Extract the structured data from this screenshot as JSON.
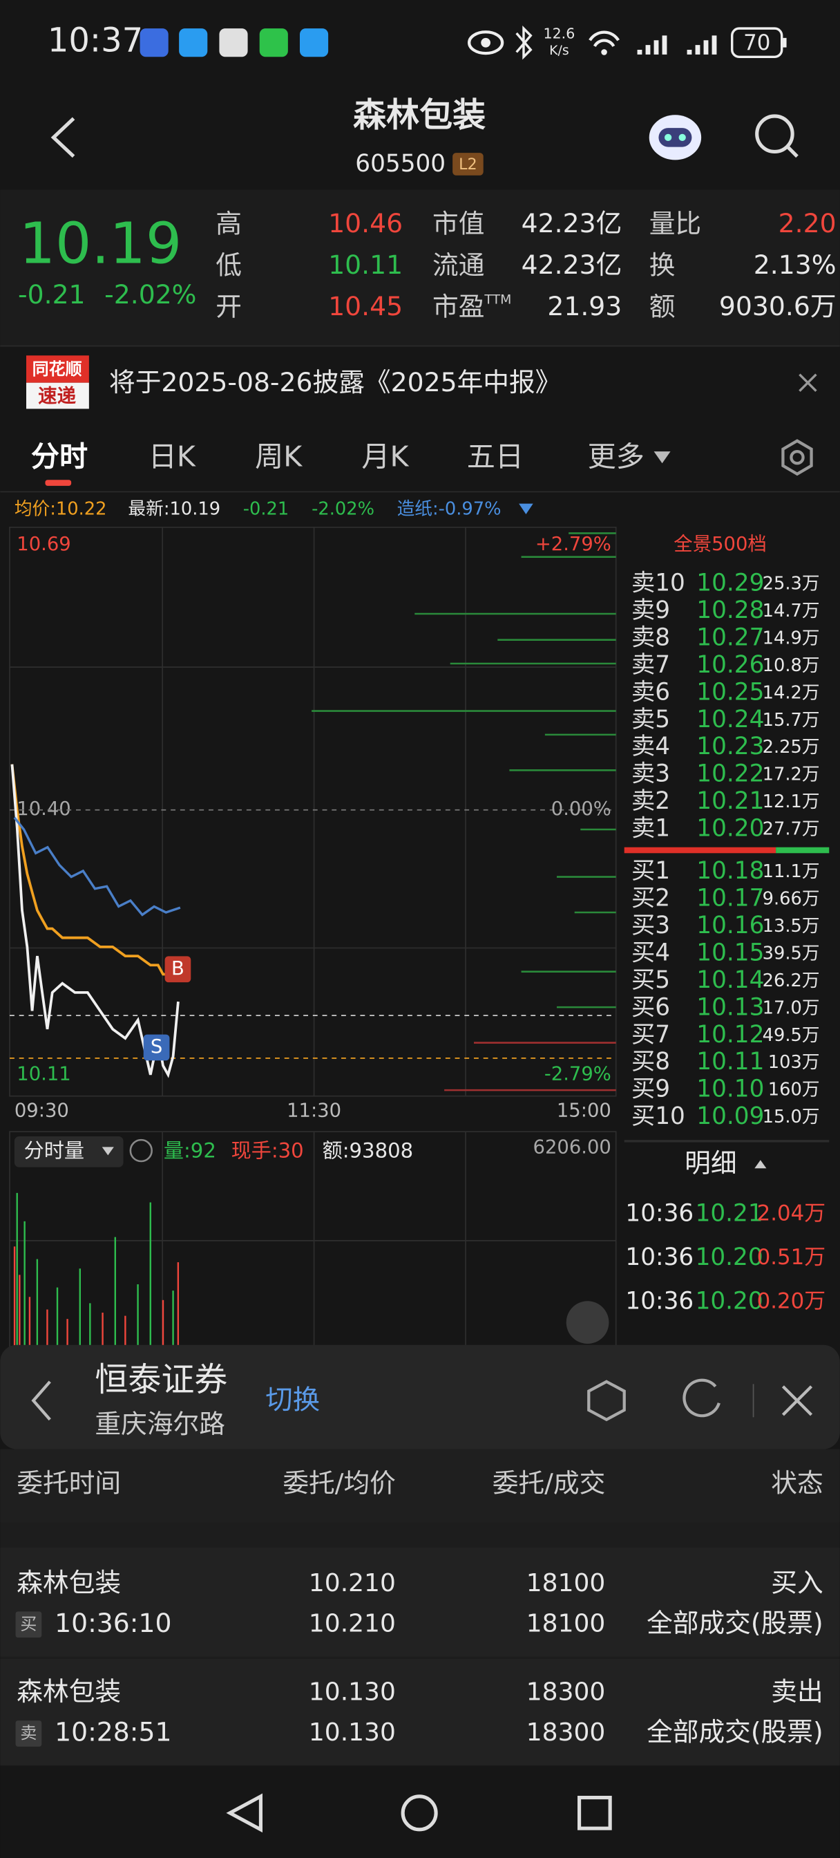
{
  "status_bar": {
    "time": "10:37",
    "speed_value": "12.6",
    "speed_unit": "K/s",
    "battery": "70"
  },
  "header": {
    "title": "森林包装",
    "code": "605500",
    "badge": "L2"
  },
  "quote": {
    "price": "10.19",
    "change": "-0.21",
    "change_pct": "-2.02%",
    "stats": [
      [
        {
          "label": "高",
          "value": "10.46"
        },
        {
          "label": "市值",
          "value": "42.23亿"
        },
        {
          "label": "量比",
          "value": "2.20"
        }
      ],
      [
        {
          "label": "低",
          "value": "10.11"
        },
        {
          "label": "流通",
          "value": "42.23亿"
        },
        {
          "label": "换",
          "value": "2.13%"
        }
      ],
      [
        {
          "label": "开",
          "value": "10.45"
        },
        {
          "label": "市盈",
          "label_sup": "TTM",
          "value": "21.93"
        },
        {
          "label": "额",
          "value": "9030.6万"
        }
      ]
    ]
  },
  "notice": {
    "logo_top": "同花顺",
    "logo_bottom": "速递",
    "text": "将于2025-08-26披露《2025年中报》"
  },
  "tabs": [
    "分时",
    "日K",
    "周K",
    "月K",
    "五日",
    "更多"
  ],
  "chart_info": {
    "avg": "均价:10.22",
    "latest": "最新:10.19",
    "change": "-0.21",
    "change_pct": "-2.02%",
    "sector": "造纸:-0.97%"
  },
  "intraday": {
    "ylim": [
      10.11,
      10.69
    ],
    "yticks": [
      10.69,
      {
        "value": 10.4,
        "label": "10.40"
      },
      10.11
    ],
    "pct_labels": [
      "+2.79%",
      "0.00%",
      "-2.79%"
    ],
    "time_labels": [
      "09:30",
      "11:30",
      "15:00"
    ],
    "xlim": [
      0,
      240
    ],
    "minutes": [
      0,
      2,
      4,
      6,
      8,
      10,
      12,
      14,
      16,
      20,
      25,
      30,
      35,
      40,
      45,
      50,
      55,
      58,
      60,
      62,
      64,
      66
    ],
    "price": [
      10.45,
      10.38,
      10.29,
      10.25,
      10.18,
      10.24,
      10.2,
      10.16,
      10.2,
      10.21,
      10.2,
      10.2,
      10.18,
      10.16,
      10.15,
      10.17,
      10.11,
      10.15,
      10.12,
      10.11,
      10.13,
      10.19
    ],
    "avg": [
      10.45,
      10.4,
      10.36,
      10.33,
      10.31,
      10.29,
      10.28,
      10.27,
      10.27,
      10.26,
      10.26,
      10.26,
      10.25,
      10.25,
      10.24,
      10.24,
      10.23,
      10.23,
      10.22,
      10.22,
      10.22,
      10.22
    ],
    "price_color": "#f0f0f0",
    "avg_color": "#f0a020",
    "buy_marker": "B",
    "sell_marker": "S"
  },
  "volume": {
    "label": "分时量",
    "qty": "量:92",
    "hand": "现手:30",
    "amount": "额:93808",
    "top_label": "6206.00",
    "ylim": [
      0,
      6206
    ],
    "xlim": [
      0,
      240
    ],
    "minutes": [
      1,
      2,
      3,
      5,
      7,
      10,
      14,
      18,
      22,
      27,
      31,
      36,
      41,
      45,
      50,
      55,
      60,
      64,
      66
    ],
    "values": [
      3500,
      5200,
      2600,
      4300,
      1900,
      3100,
      1500,
      2200,
      1200,
      2800,
      1700,
      1400,
      3800,
      1300,
      2300,
      4900,
      1800,
      2100,
      3000
    ],
    "colors": [
      "#f0463c",
      "#2ebd4e",
      "#f0463c",
      "#2ebd4e",
      "#f0463c",
      "#2ebd4e",
      "#f0463c",
      "#2ebd4e",
      "#f0463c",
      "#2ebd4e",
      "#2ebd4e",
      "#f0463c",
      "#2ebd4e",
      "#f0463c",
      "#2ebd4e",
      "#2ebd4e",
      "#f0463c",
      "#2ebd4e",
      "#f0463c"
    ]
  },
  "order_book": {
    "title": "全景500档",
    "asks": [
      {
        "label": "卖10",
        "price": "10.29",
        "volume": "25.3万"
      },
      {
        "label": "卖9",
        "price": "10.28",
        "volume": "14.7万"
      },
      {
        "label": "卖8",
        "price": "10.27",
        "volume": "14.9万"
      },
      {
        "label": "卖7",
        "price": "10.26",
        "volume": "10.8万"
      },
      {
        "label": "卖6",
        "price": "10.25",
        "volume": "14.2万"
      },
      {
        "label": "卖5",
        "price": "10.24",
        "volume": "15.7万"
      },
      {
        "label": "卖4",
        "price": "10.23",
        "volume": "2.25万"
      },
      {
        "label": "卖3",
        "price": "10.22",
        "volume": "17.2万"
      },
      {
        "label": "卖2",
        "price": "10.21",
        "volume": "12.1万"
      },
      {
        "label": "卖1",
        "price": "10.20",
        "volume": "27.7万"
      }
    ],
    "bids": [
      {
        "label": "买1",
        "price": "10.18",
        "volume": "11.1万"
      },
      {
        "label": "买2",
        "price": "10.17",
        "volume": "9.66万"
      },
      {
        "label": "买3",
        "price": "10.16",
        "volume": "13.5万"
      },
      {
        "label": "买4",
        "price": "10.15",
        "volume": "39.5万"
      },
      {
        "label": "买5",
        "price": "10.14",
        "volume": "26.2万"
      },
      {
        "label": "买6",
        "price": "10.13",
        "volume": "17.0万"
      },
      {
        "label": "买7",
        "price": "10.12",
        "volume": "49.5万"
      },
      {
        "label": "买8",
        "price": "10.11",
        "volume": "103万"
      },
      {
        "label": "买9",
        "price": "10.10",
        "volume": "160万"
      },
      {
        "label": "买10",
        "price": "10.09",
        "volume": "15.0万"
      }
    ]
  },
  "details": {
    "title": "明细",
    "rows": [
      {
        "time": "10:36",
        "price": "10.21",
        "volume": "2.04万"
      },
      {
        "time": "10:36",
        "price": "10.20",
        "volume": "0.51万"
      },
      {
        "time": "10:36",
        "price": "10.20",
        "volume": "0.20万"
      }
    ]
  },
  "broker": {
    "name": "恒泰证券",
    "branch": "重庆海尔路",
    "switch": "切换"
  },
  "orders": {
    "columns": [
      "委托时间",
      "委托/均价",
      "委托/成交",
      "状态"
    ],
    "rows": [
      {
        "name": "森林包装",
        "side": "买",
        "time": "10:36:10",
        "order_price": "10.210",
        "avg_price": "10.210",
        "order_qty": "18100",
        "filled_qty": "18100",
        "action": "买入",
        "status": "全部成交(股票)"
      },
      {
        "name": "森林包装",
        "side": "卖",
        "time": "10:28:51",
        "order_price": "10.130",
        "avg_price": "10.130",
        "order_qty": "18300",
        "filled_qty": "18300",
        "action": "卖出",
        "status": "全部成交(股票)"
      }
    ]
  }
}
